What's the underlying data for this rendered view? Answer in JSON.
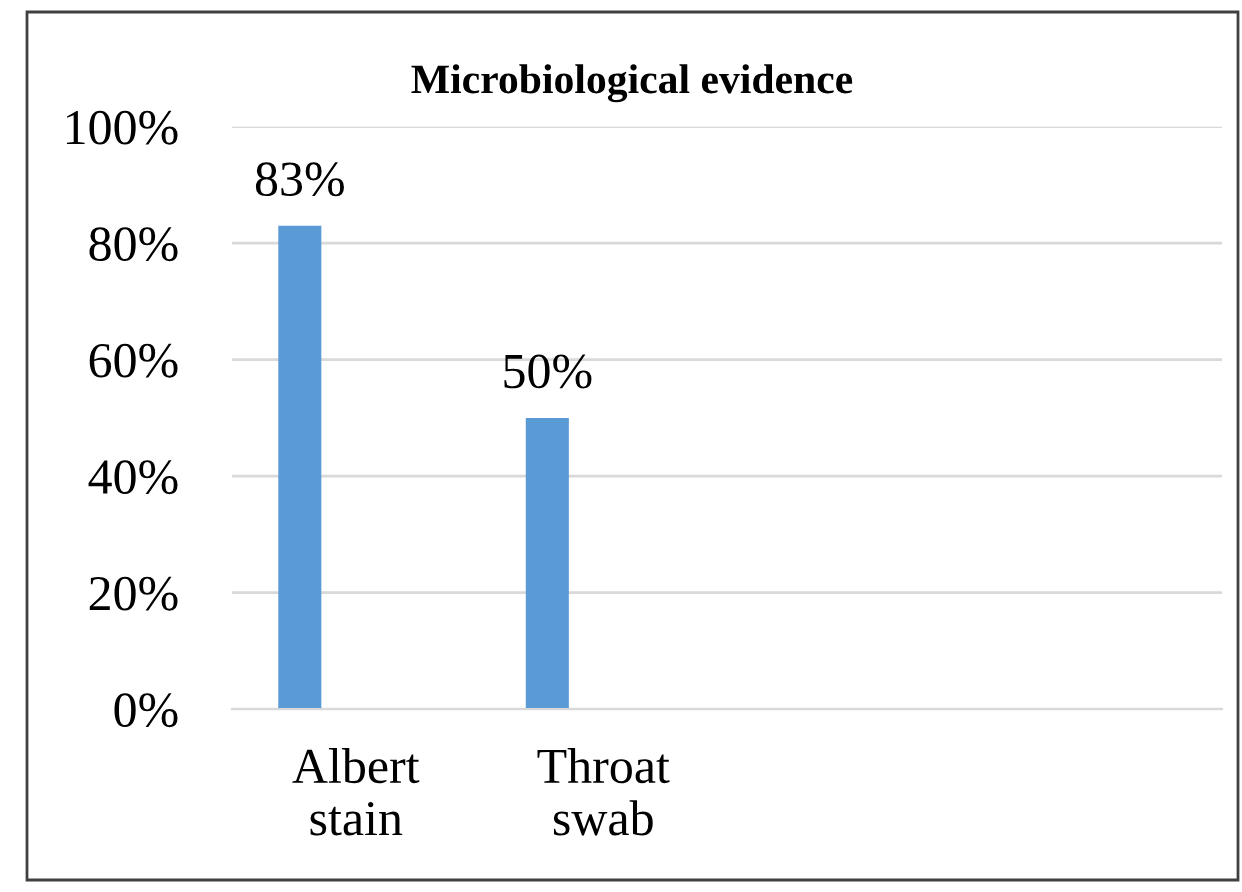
{
  "chart_data": {
    "type": "bar",
    "title": "Microbiological evidence",
    "categories": [
      "Albert stain",
      "Throat swab",
      null,
      null
    ],
    "values": [
      83,
      50,
      null,
      null
    ],
    "color": "#5b9bd5",
    "value_labels": [
      "83%",
      "50%",
      null,
      null
    ],
    "ylim": [
      0,
      100
    ],
    "yticks": [
      {
        "value": 0,
        "label": "0%"
      },
      {
        "value": 20,
        "label": "20%"
      },
      {
        "value": 40,
        "label": "40%"
      },
      {
        "value": 60,
        "label": "60%"
      },
      {
        "value": 80,
        "label": "80%"
      },
      {
        "value": 100,
        "label": "100%"
      }
    ],
    "grid": "y"
  }
}
